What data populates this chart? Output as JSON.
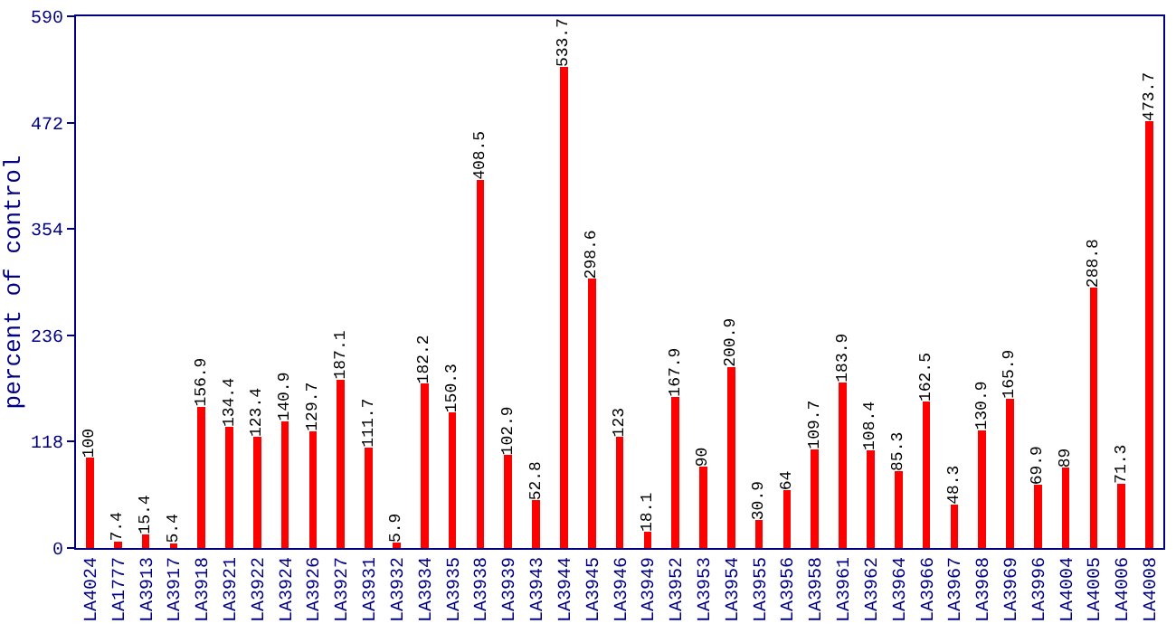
{
  "chart_data": {
    "type": "bar",
    "ylabel": "percent of control",
    "categories": [
      "LA4024",
      "LA1777",
      "LA3913",
      "LA3917",
      "LA3918",
      "LA3921",
      "LA3922",
      "LA3924",
      "LA3926",
      "LA3927",
      "LA3931",
      "LA3932",
      "LA3934",
      "LA3935",
      "LA3938",
      "LA3939",
      "LA3943",
      "LA3944",
      "LA3945",
      "LA3946",
      "LA3949",
      "LA3952",
      "LA3953",
      "LA3954",
      "LA3955",
      "LA3956",
      "LA3958",
      "LA3961",
      "LA3962",
      "LA3964",
      "LA3966",
      "LA3967",
      "LA3968",
      "LA3969",
      "LA3996",
      "LA4004",
      "LA4005",
      "LA4006",
      "LA4008"
    ],
    "values": [
      100,
      7.4,
      15.4,
      5.4,
      156.9,
      134.4,
      123.4,
      140.9,
      129.7,
      187.1,
      111.7,
      5.9,
      182.2,
      150.3,
      408.5,
      102.9,
      52.8,
      533.7,
      298.6,
      123,
      18.1,
      167.9,
      90,
      200.9,
      30.9,
      64,
      109.7,
      183.9,
      108.4,
      85.3,
      162.5,
      48.3,
      130.9,
      165.9,
      69.9,
      89,
      288.8,
      71.3,
      473.7
    ],
    "color": "#ff0000",
    "ylim": [
      0,
      590
    ],
    "yticks": [
      0,
      118,
      236,
      354,
      472,
      590
    ],
    "grid": false,
    "data_labels": true
  }
}
